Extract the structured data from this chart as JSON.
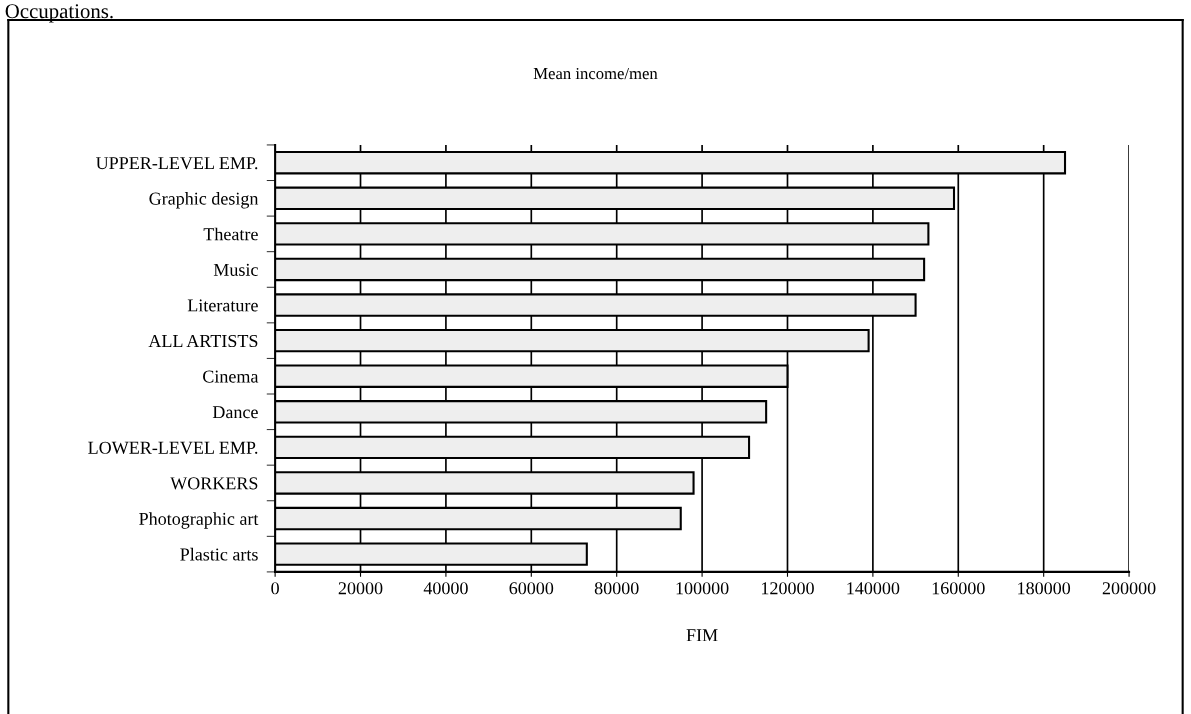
{
  "chart_data": {
    "type": "bar",
    "orientation": "horizontal",
    "title": "Mean income/men",
    "xlabel": "FIM",
    "annotations": [
      "Occupations."
    ],
    "categories": [
      "UPPER-LEVEL EMP.",
      "Graphic design",
      "Theatre",
      "Music",
      "Literature",
      "ALL ARTISTS",
      "Cinema",
      "Dance",
      "LOWER-LEVEL EMP.",
      "WORKERS",
      "Photographic art",
      "Plastic arts"
    ],
    "values": [
      185000,
      159000,
      153000,
      152000,
      150000,
      139000,
      120000,
      115000,
      111000,
      98000,
      95000,
      73000
    ],
    "color": "#eeeeee",
    "xlim": [
      0,
      200000
    ],
    "xticks": [
      0,
      20000,
      40000,
      60000,
      80000,
      100000,
      120000,
      140000,
      160000,
      180000,
      200000
    ],
    "grid": "x",
    "legend": false
  }
}
